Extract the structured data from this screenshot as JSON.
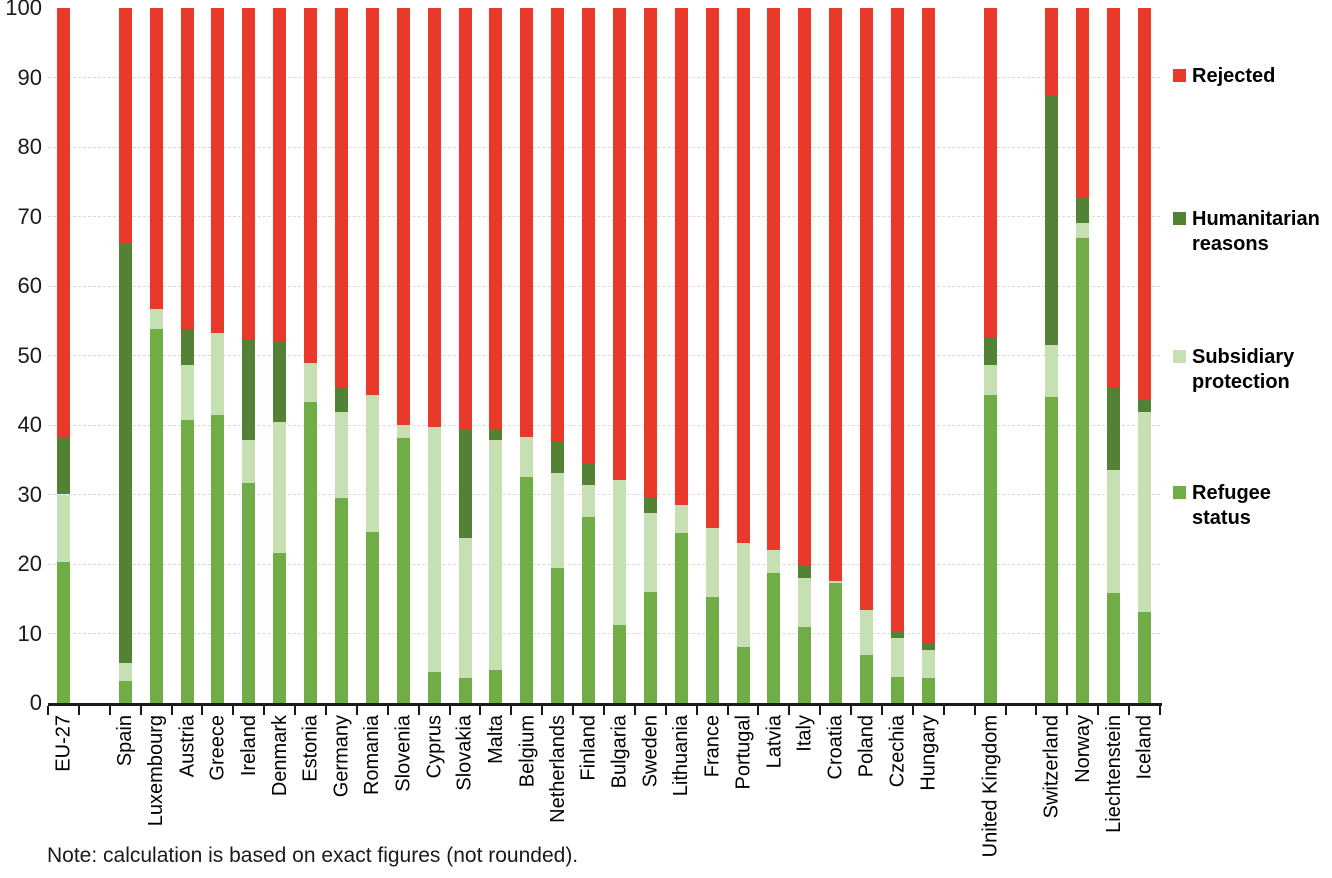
{
  "note": "Note: calculation is based on exact figures (not rounded).",
  "legend": {
    "items": [
      {
        "key": "rejected",
        "label": "Rejected"
      },
      {
        "key": "humanitarian_reasons",
        "label": "Humanitarian\nreasons"
      },
      {
        "key": "subsidiary_protection",
        "label": "Subsidiary\nprotection"
      },
      {
        "key": "refugee_status",
        "label": "Refugee\nstatus"
      }
    ]
  },
  "chart_data": {
    "type": "bar",
    "stacked": true,
    "unit": "percent of first instance decisions",
    "title": "",
    "xlabel": "",
    "ylabel": "",
    "ylim": [
      0,
      100
    ],
    "yticks": [
      0,
      10,
      20,
      30,
      40,
      50,
      60,
      70,
      80,
      90,
      100
    ],
    "grid": "horizontal-dashed",
    "legend_position": "right",
    "series_order": [
      "refugee_status",
      "subsidiary_protection",
      "humanitarian_reasons",
      "rejected"
    ],
    "series_labels": {
      "refugee_status": "Refugee status",
      "subsidiary_protection": "Subsidiary protection",
      "humanitarian_reasons": "Humanitarian reasons",
      "rejected": "Rejected"
    },
    "colors": {
      "refugee_status": "#70AD47",
      "subsidiary_protection": "#C6E0B4",
      "humanitarian_reasons": "#538135",
      "rejected": "#E8392B",
      "gridline": "#D9D9D9",
      "axis": "#1A1A1A"
    },
    "categories": [
      {
        "label": "EU-27",
        "values": {
          "refugee_status": 20.3,
          "subsidiary_protection": 9.7,
          "humanitarian_reasons": 8.1,
          "rejected": 61.9
        }
      },
      {
        "spacer": true
      },
      {
        "label": "Spain",
        "values": {
          "refugee_status": 3.1,
          "subsidiary_protection": 2.6,
          "humanitarian_reasons": 60.4,
          "rejected": 33.9
        }
      },
      {
        "label": "Luxembourg",
        "values": {
          "refugee_status": 53.8,
          "subsidiary_protection": 2.9,
          "humanitarian_reasons": 0,
          "rejected": 43.3
        }
      },
      {
        "label": "Austria",
        "values": {
          "refugee_status": 40.7,
          "subsidiary_protection": 7.9,
          "humanitarian_reasons": 5.0,
          "rejected": 46.4
        }
      },
      {
        "label": "Greece",
        "values": {
          "refugee_status": 41.4,
          "subsidiary_protection": 11.8,
          "humanitarian_reasons": 0,
          "rejected": 46.8
        }
      },
      {
        "label": "Ireland",
        "values": {
          "refugee_status": 31.6,
          "subsidiary_protection": 6.2,
          "humanitarian_reasons": 14.4,
          "rejected": 47.8
        }
      },
      {
        "label": "Denmark",
        "values": {
          "refugee_status": 21.6,
          "subsidiary_protection": 18.9,
          "humanitarian_reasons": 11.5,
          "rejected": 48.0
        }
      },
      {
        "label": "Estonia",
        "values": {
          "refugee_status": 43.3,
          "subsidiary_protection": 5.6,
          "humanitarian_reasons": 0,
          "rejected": 51.1
        }
      },
      {
        "label": "Germany",
        "values": {
          "refugee_status": 29.5,
          "subsidiary_protection": 12.4,
          "humanitarian_reasons": 3.6,
          "rejected": 54.5
        }
      },
      {
        "label": "Romania",
        "values": {
          "refugee_status": 24.6,
          "subsidiary_protection": 19.7,
          "humanitarian_reasons": 0,
          "rejected": 55.7
        }
      },
      {
        "label": "Slovenia",
        "values": {
          "refugee_status": 38.1,
          "subsidiary_protection": 1.9,
          "humanitarian_reasons": 0,
          "rejected": 60.0
        }
      },
      {
        "label": "Cyprus",
        "values": {
          "refugee_status": 4.5,
          "subsidiary_protection": 35.2,
          "humanitarian_reasons": 0,
          "rejected": 60.3
        }
      },
      {
        "label": "Slovakia",
        "values": {
          "refugee_status": 3.6,
          "subsidiary_protection": 20.1,
          "humanitarian_reasons": 15.6,
          "rejected": 60.7
        }
      },
      {
        "label": "Malta",
        "values": {
          "refugee_status": 4.7,
          "subsidiary_protection": 33.1,
          "humanitarian_reasons": 1.5,
          "rejected": 60.7
        }
      },
      {
        "label": "Belgium",
        "values": {
          "refugee_status": 32.5,
          "subsidiary_protection": 5.8,
          "humanitarian_reasons": 0,
          "rejected": 61.7
        }
      },
      {
        "label": "Netherlands",
        "values": {
          "refugee_status": 19.4,
          "subsidiary_protection": 13.7,
          "humanitarian_reasons": 4.5,
          "rejected": 62.4
        }
      },
      {
        "label": "Finland",
        "values": {
          "refugee_status": 26.8,
          "subsidiary_protection": 4.6,
          "humanitarian_reasons": 3.1,
          "rejected": 65.5
        }
      },
      {
        "label": "Bulgaria",
        "values": {
          "refugee_status": 11.2,
          "subsidiary_protection": 20.9,
          "humanitarian_reasons": 0,
          "rejected": 67.9
        }
      },
      {
        "label": "Sweden",
        "values": {
          "refugee_status": 16.0,
          "subsidiary_protection": 11.3,
          "humanitarian_reasons": 2.2,
          "rejected": 70.5
        }
      },
      {
        "label": "Lithuania",
        "values": {
          "refugee_status": 24.5,
          "subsidiary_protection": 4.0,
          "humanitarian_reasons": 0,
          "rejected": 71.5
        }
      },
      {
        "label": "France",
        "values": {
          "refugee_status": 15.3,
          "subsidiary_protection": 9.9,
          "humanitarian_reasons": 0,
          "rejected": 74.8
        }
      },
      {
        "label": "Portugal",
        "values": {
          "refugee_status": 8.1,
          "subsidiary_protection": 14.9,
          "humanitarian_reasons": 0,
          "rejected": 77.0
        }
      },
      {
        "label": "Latvia",
        "values": {
          "refugee_status": 18.7,
          "subsidiary_protection": 3.3,
          "humanitarian_reasons": 0,
          "rejected": 78.0
        }
      },
      {
        "label": "Italy",
        "values": {
          "refugee_status": 10.9,
          "subsidiary_protection": 7.1,
          "humanitarian_reasons": 1.9,
          "rejected": 80.1
        }
      },
      {
        "label": "Croatia",
        "values": {
          "refugee_status": 17.2,
          "subsidiary_protection": 0.4,
          "humanitarian_reasons": 0,
          "rejected": 82.4
        }
      },
      {
        "label": "Poland",
        "values": {
          "refugee_status": 6.9,
          "subsidiary_protection": 6.5,
          "humanitarian_reasons": 0,
          "rejected": 86.6
        }
      },
      {
        "label": "Czechia",
        "values": {
          "refugee_status": 3.8,
          "subsidiary_protection": 5.6,
          "humanitarian_reasons": 0.8,
          "rejected": 89.8
        }
      },
      {
        "label": "Hungary",
        "values": {
          "refugee_status": 3.6,
          "subsidiary_protection": 4.0,
          "humanitarian_reasons": 1.0,
          "rejected": 91.4
        }
      },
      {
        "spacer": true
      },
      {
        "label": "United Kingdom",
        "values": {
          "refugee_status": 44.3,
          "subsidiary_protection": 4.3,
          "humanitarian_reasons": 4.1,
          "rejected": 47.3
        }
      },
      {
        "spacer": true
      },
      {
        "label": "Switzerland",
        "values": {
          "refugee_status": 44.0,
          "subsidiary_protection": 7.5,
          "humanitarian_reasons": 36.0,
          "rejected": 12.5
        }
      },
      {
        "label": "Norway",
        "values": {
          "refugee_status": 66.9,
          "subsidiary_protection": 2.2,
          "humanitarian_reasons": 3.7,
          "rejected": 27.2
        }
      },
      {
        "label": "Liechtenstein",
        "values": {
          "refugee_status": 15.8,
          "subsidiary_protection": 17.7,
          "humanitarian_reasons": 12.0,
          "rejected": 54.5
        }
      },
      {
        "label": "Iceland",
        "values": {
          "refugee_status": 13.1,
          "subsidiary_protection": 28.8,
          "humanitarian_reasons": 1.7,
          "rejected": 56.4
        }
      }
    ]
  }
}
